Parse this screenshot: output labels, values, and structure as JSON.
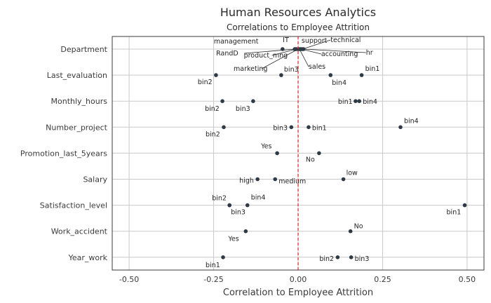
{
  "chart_data": {
    "type": "scatter",
    "title": "Human Resources Analytics",
    "subtitle": "Correlations to Employee Attrition",
    "xlabel": "Correlation to Employee Attrition",
    "xlim": [
      -0.55,
      0.55
    ],
    "xticks": [
      -0.5,
      -0.25,
      0.0,
      0.25,
      0.5
    ],
    "xtick_labels": [
      "-0.50",
      "-0.25",
      "0.00",
      "0.25",
      "0.50"
    ],
    "zero_line": {
      "x": 0,
      "color": "#e02020",
      "style": "dashed"
    },
    "point_color": "#2e3a45",
    "categories": [
      "Department",
      "Last_evaluation",
      "Monthly_hours",
      "Number_project",
      "Promotion_last_5years",
      "Salary",
      "Satisfaction_level",
      "Work_accident",
      "Year_work"
    ],
    "points": [
      {
        "category": "Department",
        "label": "management",
        "x": -0.046
      },
      {
        "category": "Department",
        "label": "IT",
        "x": -0.01
      },
      {
        "category": "Department",
        "label": "RandD",
        "x": -0.008
      },
      {
        "category": "Department",
        "label": "product_mng",
        "x": -0.005
      },
      {
        "category": "Department",
        "label": "marketing",
        "x": 0.0
      },
      {
        "category": "Department",
        "label": "support",
        "x": 0.006
      },
      {
        "category": "Department",
        "label": "technical",
        "x": 0.013
      },
      {
        "category": "Department",
        "label": "sales",
        "x": 0.004
      },
      {
        "category": "Department",
        "label": "accounting",
        "x": 0.01
      },
      {
        "category": "Department",
        "label": "hr",
        "x": 0.016
      },
      {
        "category": "Last_evaluation",
        "label": "bin2",
        "x": -0.243
      },
      {
        "category": "Last_evaluation",
        "label": "bin3",
        "x": -0.05
      },
      {
        "category": "Last_evaluation",
        "label": "bin4",
        "x": 0.096
      },
      {
        "category": "Last_evaluation",
        "label": "bin1",
        "x": 0.188
      },
      {
        "category": "Monthly_hours",
        "label": "bin2",
        "x": -0.224
      },
      {
        "category": "Monthly_hours",
        "label": "bin3",
        "x": -0.133
      },
      {
        "category": "Monthly_hours",
        "label": "bin1",
        "x": 0.17
      },
      {
        "category": "Monthly_hours",
        "label": "bin4",
        "x": 0.181
      },
      {
        "category": "Number_project",
        "label": "bin2",
        "x": -0.22
      },
      {
        "category": "Number_project",
        "label": "bin3",
        "x": -0.02
      },
      {
        "category": "Number_project",
        "label": "bin1",
        "x": 0.031
      },
      {
        "category": "Number_project",
        "label": "bin4",
        "x": 0.303
      },
      {
        "category": "Promotion_last_5years",
        "label": "Yes",
        "x": -0.062
      },
      {
        "category": "Promotion_last_5years",
        "label": "No",
        "x": 0.062
      },
      {
        "category": "Salary",
        "label": "high",
        "x": -0.12
      },
      {
        "category": "Salary",
        "label": "medium",
        "x": -0.068
      },
      {
        "category": "Salary",
        "label": "low",
        "x": 0.134
      },
      {
        "category": "Satisfaction_level",
        "label": "bin2",
        "x": -0.203
      },
      {
        "category": "Satisfaction_level",
        "label": "bin3",
        "x": -0.203
      },
      {
        "category": "Satisfaction_level",
        "label": "bin4",
        "x": -0.15
      },
      {
        "category": "Satisfaction_level",
        "label": "bin1",
        "x": 0.493
      },
      {
        "category": "Work_accident",
        "label": "Yes",
        "x": -0.155
      },
      {
        "category": "Work_accident",
        "label": "No",
        "x": 0.155
      },
      {
        "category": "Year_work",
        "label": "bin1",
        "x": -0.222
      },
      {
        "category": "Year_work",
        "label": "bin2",
        "x": 0.117
      },
      {
        "category": "Year_work",
        "label": "bin3",
        "x": 0.157
      }
    ]
  }
}
